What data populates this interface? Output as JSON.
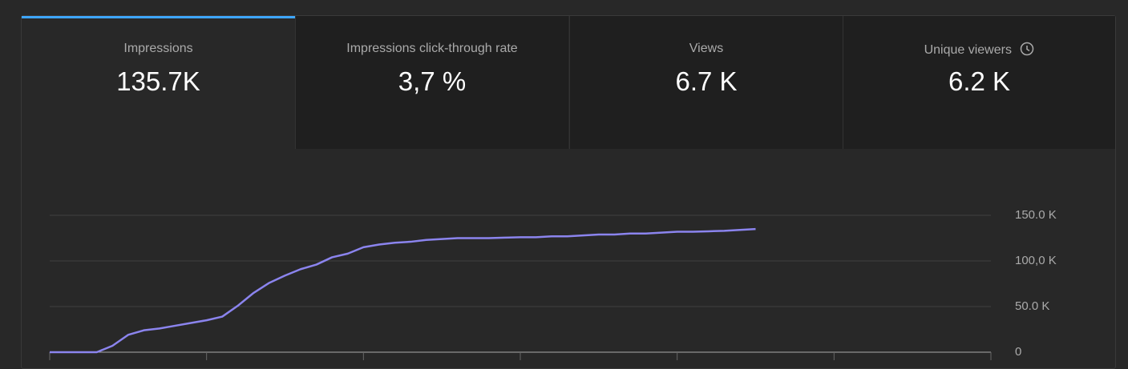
{
  "cards": [
    {
      "label": "Impressions",
      "value": "135.7K"
    },
    {
      "label": "Impressions click-through rate",
      "value": "3,7 %"
    },
    {
      "label": "Views",
      "value": "6.7 K"
    },
    {
      "label": "Unique viewers",
      "value": "6.2 K"
    }
  ],
  "chart_data": {
    "type": "line",
    "color": "#8b84ee",
    "x": [
      0,
      1,
      2,
      3,
      4,
      5,
      6,
      7,
      8,
      9,
      10,
      11,
      12,
      13,
      14,
      15,
      16,
      17,
      18,
      19,
      20,
      21,
      22,
      23,
      24,
      25,
      26,
      27,
      28,
      29,
      30,
      31,
      32,
      33,
      34,
      35,
      36,
      37,
      38,
      39,
      40,
      41,
      42,
      43,
      44,
      45
    ],
    "values": [
      0,
      0,
      0,
      0,
      7,
      19,
      24,
      26,
      29,
      32,
      35,
      39,
      51,
      65,
      76,
      84,
      91,
      96,
      104,
      108,
      115,
      118,
      120,
      121,
      123,
      124,
      125,
      125,
      125,
      125.5,
      126,
      126,
      127,
      127,
      128,
      129,
      129,
      130,
      130,
      131,
      132,
      132,
      132.5,
      133,
      134,
      135
    ],
    "xlim": [
      0,
      60
    ],
    "xticks": [
      0,
      10,
      20,
      30,
      40,
      50,
      60
    ],
    "ylim": [
      0,
      150
    ],
    "yticks": [
      {
        "value": 0,
        "label": "0"
      },
      {
        "value": 50,
        "label": "50.0 K"
      },
      {
        "value": 100,
        "label": "100,0 K"
      },
      {
        "value": 150,
        "label": "150.0 K"
      }
    ],
    "grid": true
  }
}
